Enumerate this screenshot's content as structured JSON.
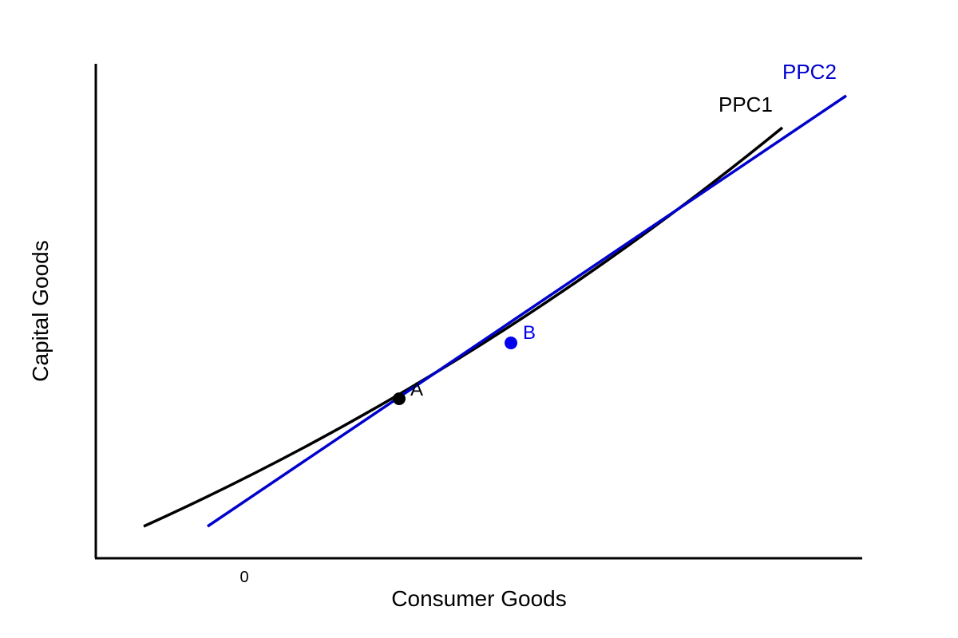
{
  "diagram": {
    "axes": {
      "x_label": "Consumer Goods",
      "y_label": "Capital Goods",
      "origin_tick": "0"
    },
    "curves": [
      {
        "name": "PPC1",
        "label": "PPC1",
        "color": "#000000"
      },
      {
        "name": "PPC2",
        "label": "PPC2",
        "color": "#0000cc"
      }
    ],
    "points": [
      {
        "label": "A",
        "color": "#000000",
        "on_curve": "PPC1"
      },
      {
        "label": "B",
        "color": "#0000ee",
        "on_curve": "PPC2"
      }
    ]
  }
}
